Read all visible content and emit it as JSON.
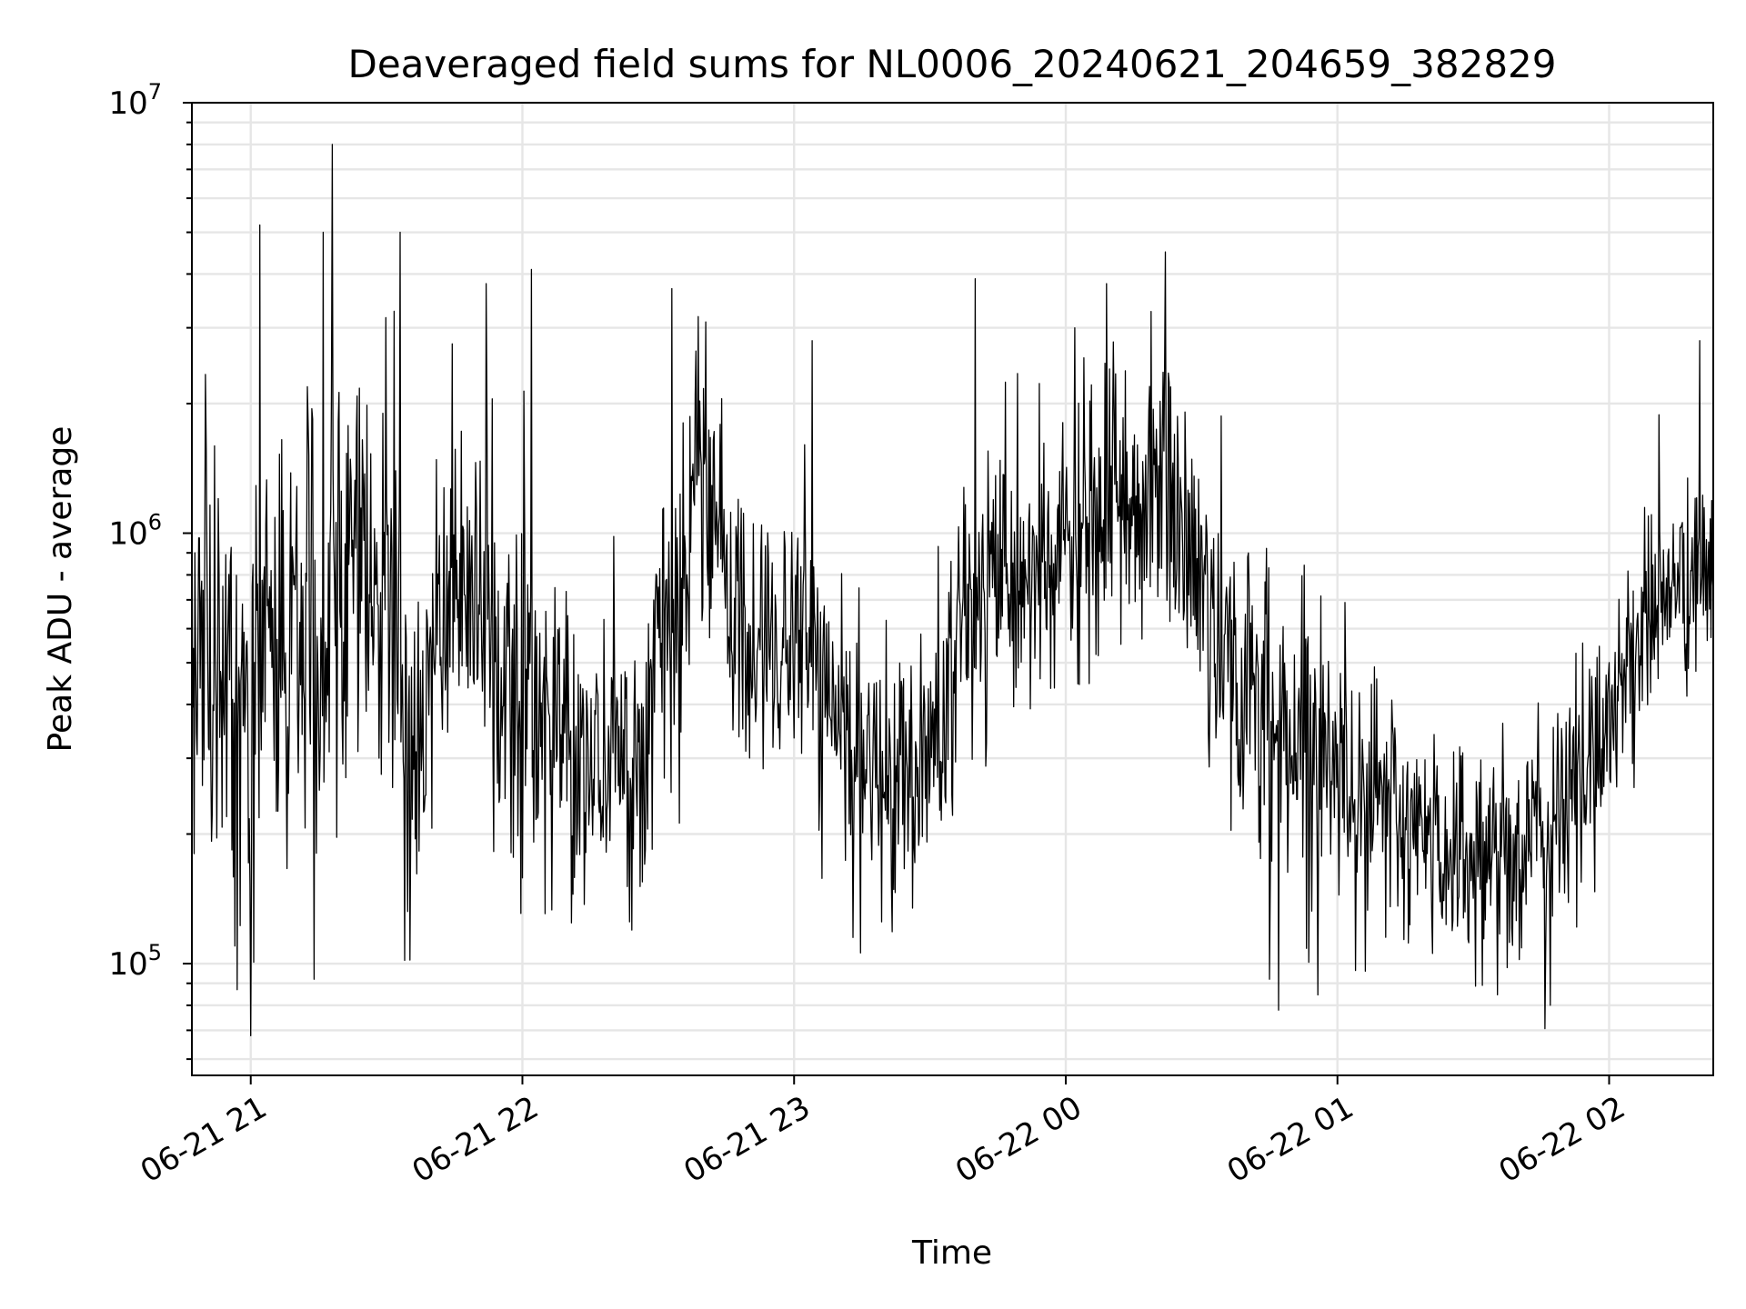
{
  "chart_data": {
    "type": "line",
    "title": "Deaveraged field sums for NL0006_20240621_204659_382829",
    "xlabel": "Time",
    "ylabel": "Peak ADU - average",
    "yscale": "log",
    "ylim": [
      55000,
      10000000
    ],
    "xlim": [
      "2024-06-21 20:47",
      "2024-06-22 02:23"
    ],
    "grid": true,
    "line_color": "#000000",
    "grid_color": "#e6e6e6",
    "x_ticks": [
      {
        "t": "2024-06-21 21:00",
        "label": "06-21 21"
      },
      {
        "t": "2024-06-21 22:00",
        "label": "06-21 22"
      },
      {
        "t": "2024-06-21 23:00",
        "label": "06-21 23"
      },
      {
        "t": "2024-06-22 00:00",
        "label": "06-22 00"
      },
      {
        "t": "2024-06-22 01:00",
        "label": "06-22 01"
      },
      {
        "t": "2024-06-22 02:00",
        "label": "06-22 02"
      }
    ],
    "y_ticks": [
      {
        "value": 100000,
        "base": "10",
        "exp": "5"
      },
      {
        "value": 1000000,
        "base": "10",
        "exp": "6"
      },
      {
        "value": 10000000,
        "base": "10",
        "exp": "7"
      }
    ],
    "series": [
      {
        "name": "",
        "sample_interval_seconds": 10,
        "x_start": "2024-06-21 20:47",
        "x": [
          "2024-06-21 20:47",
          "2024-06-21 21:00",
          "2024-06-21 21:15",
          "2024-06-21 21:30",
          "2024-06-21 21:35",
          "2024-06-21 21:45",
          "2024-06-21 22:00",
          "2024-06-21 22:15",
          "2024-06-21 22:25",
          "2024-06-21 22:40",
          "2024-06-21 22:50",
          "2024-06-21 23:00",
          "2024-06-21 23:15",
          "2024-06-21 23:30",
          "2024-06-21 23:40",
          "2024-06-21 23:55",
          "2024-06-22 00:10",
          "2024-06-22 00:22",
          "2024-06-22 00:40",
          "2024-06-22 01:00",
          "2024-06-22 01:15",
          "2024-06-22 01:30",
          "2024-06-22 01:45",
          "2024-06-22 01:55",
          "2024-06-22 02:10",
          "2024-06-22 02:23"
        ],
        "median": [
          500000,
          450000,
          700000,
          900000,
          300000,
          800000,
          400000,
          300000,
          280000,
          1300000,
          500000,
          600000,
          270000,
          300000,
          700000,
          800000,
          1100000,
          1300000,
          400000,
          300000,
          200000,
          180000,
          190000,
          280000,
          700000,
          800000
        ],
        "spread_decades": [
          0.45,
          0.5,
          0.5,
          0.45,
          0.4,
          0.35,
          0.35,
          0.3,
          0.3,
          0.3,
          0.3,
          0.3,
          0.25,
          0.3,
          0.35,
          0.3,
          0.3,
          0.3,
          0.35,
          0.3,
          0.25,
          0.25,
          0.25,
          0.25,
          0.22,
          0.22
        ],
        "peaks": [
          {
            "t": "2024-06-21 21:02",
            "y": 5200000
          },
          {
            "t": "2024-06-21 21:18",
            "y": 8000000
          },
          {
            "t": "2024-06-21 21:16",
            "y": 5000000
          },
          {
            "t": "2024-06-21 21:33",
            "y": 5000000
          },
          {
            "t": "2024-06-21 22:02",
            "y": 4100000
          },
          {
            "t": "2024-06-21 21:52",
            "y": 3800000
          },
          {
            "t": "2024-06-21 22:33",
            "y": 3700000
          },
          {
            "t": "2024-06-21 23:04",
            "y": 2800000
          },
          {
            "t": "2024-06-21 23:40",
            "y": 3900000
          },
          {
            "t": "2024-06-22 00:09",
            "y": 3800000
          },
          {
            "t": "2024-06-22 00:22",
            "y": 4500000
          },
          {
            "t": "2024-06-22 00:02",
            "y": 3000000
          },
          {
            "t": "2024-06-22 02:20",
            "y": 2800000
          }
        ],
        "troughs": [
          {
            "t": "2024-06-21 21:00",
            "y": 68000
          },
          {
            "t": "2024-06-21 20:57",
            "y": 87000
          },
          {
            "t": "2024-06-21 21:14",
            "y": 92000
          },
          {
            "t": "2024-06-21 23:13",
            "y": 115000
          },
          {
            "t": "2024-06-22 00:47",
            "y": 78000
          },
          {
            "t": "2024-06-22 01:32",
            "y": 89000
          },
          {
            "t": "2024-06-22 01:47",
            "y": 80000
          },
          {
            "t": "2024-06-22 00:45",
            "y": 92000
          }
        ]
      }
    ]
  }
}
